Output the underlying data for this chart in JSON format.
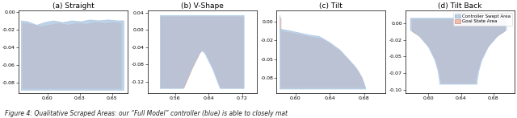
{
  "subplots": [
    {
      "title": "(a) Straight",
      "xlim": [
        0.578,
        0.662
      ],
      "ylim": [
        -0.092,
        0.002
      ],
      "controller_poly": [
        [
          0.58,
          -0.01
        ],
        [
          0.585,
          -0.011
        ],
        [
          0.592,
          -0.015
        ],
        [
          0.598,
          -0.012
        ],
        [
          0.605,
          -0.01
        ],
        [
          0.612,
          -0.012
        ],
        [
          0.619,
          -0.01
        ],
        [
          0.626,
          -0.011
        ],
        [
          0.633,
          -0.009
        ],
        [
          0.64,
          -0.01
        ],
        [
          0.647,
          -0.009
        ],
        [
          0.654,
          -0.01
        ],
        [
          0.659,
          -0.01
        ],
        [
          0.659,
          -0.089
        ],
        [
          0.58,
          -0.089
        ],
        [
          0.58,
          -0.01
        ]
      ],
      "goal_poly": [
        [
          0.581,
          -0.013
        ],
        [
          0.588,
          -0.014
        ],
        [
          0.595,
          -0.017
        ],
        [
          0.602,
          -0.015
        ],
        [
          0.609,
          -0.013
        ],
        [
          0.616,
          -0.015
        ],
        [
          0.623,
          -0.013
        ],
        [
          0.63,
          -0.014
        ],
        [
          0.637,
          -0.012
        ],
        [
          0.644,
          -0.013
        ],
        [
          0.651,
          -0.012
        ],
        [
          0.657,
          -0.013
        ],
        [
          0.657,
          -0.087
        ],
        [
          0.581,
          -0.087
        ],
        [
          0.581,
          -0.013
        ]
      ]
    },
    {
      "title": "(b) V-Shape",
      "xlim": [
        0.495,
        0.755
      ],
      "ylim": [
        -0.145,
        0.045
      ],
      "controller_poly": [
        [
          0.525,
          0.033
        ],
        [
          0.525,
          -0.135
        ],
        [
          0.58,
          -0.135
        ],
        [
          0.6,
          -0.09
        ],
        [
          0.618,
          -0.055
        ],
        [
          0.625,
          -0.048
        ],
        [
          0.632,
          -0.055
        ],
        [
          0.65,
          -0.09
        ],
        [
          0.668,
          -0.135
        ],
        [
          0.725,
          -0.135
        ],
        [
          0.725,
          0.033
        ],
        [
          0.525,
          0.033
        ]
      ],
      "goal_poly": [
        [
          0.527,
          0.03
        ],
        [
          0.527,
          -0.133
        ],
        [
          0.582,
          -0.133
        ],
        [
          0.602,
          -0.088
        ],
        [
          0.62,
          -0.053
        ],
        [
          0.627,
          -0.046
        ],
        [
          0.634,
          -0.053
        ],
        [
          0.652,
          -0.088
        ],
        [
          0.67,
          -0.133
        ],
        [
          0.723,
          -0.133
        ],
        [
          0.723,
          0.03
        ],
        [
          0.527,
          0.03
        ]
      ]
    },
    {
      "title": "(c) Tilt",
      "xlim": [
        0.578,
        0.705
      ],
      "ylim": [
        -0.095,
        0.015
      ],
      "controller_poly": [
        [
          0.582,
          0.008
        ],
        [
          0.582,
          -0.01
        ],
        [
          0.592,
          -0.012
        ],
        [
          0.604,
          -0.015
        ],
        [
          0.616,
          -0.018
        ],
        [
          0.628,
          -0.02
        ],
        [
          0.64,
          -0.028
        ],
        [
          0.652,
          -0.038
        ],
        [
          0.66,
          -0.048
        ],
        [
          0.668,
          -0.058
        ],
        [
          0.672,
          -0.064
        ],
        [
          0.676,
          -0.072
        ],
        [
          0.68,
          -0.082
        ],
        [
          0.682,
          -0.09
        ],
        [
          0.582,
          -0.09
        ],
        [
          0.582,
          0.008
        ]
      ],
      "goal_poly": [
        [
          0.583,
          0.005
        ],
        [
          0.583,
          -0.013
        ],
        [
          0.594,
          -0.015
        ],
        [
          0.606,
          -0.018
        ],
        [
          0.618,
          -0.021
        ],
        [
          0.63,
          -0.023
        ],
        [
          0.642,
          -0.031
        ],
        [
          0.654,
          -0.042
        ],
        [
          0.662,
          -0.052
        ],
        [
          0.67,
          -0.062
        ],
        [
          0.674,
          -0.068
        ],
        [
          0.678,
          -0.076
        ],
        [
          0.68,
          -0.086
        ],
        [
          0.681,
          -0.088
        ],
        [
          0.583,
          -0.088
        ],
        [
          0.583,
          0.005
        ]
      ]
    },
    {
      "title": "(d) Tilt Back",
      "xlim": [
        0.572,
        0.706
      ],
      "ylim": [
        -0.105,
        0.02
      ],
      "controller_poly": [
        [
          0.578,
          0.008
        ],
        [
          0.578,
          -0.01
        ],
        [
          0.588,
          -0.018
        ],
        [
          0.6,
          -0.035
        ],
        [
          0.608,
          -0.055
        ],
        [
          0.612,
          -0.072
        ],
        [
          0.614,
          -0.088
        ],
        [
          0.614,
          -0.092
        ],
        [
          0.66,
          -0.092
        ],
        [
          0.66,
          -0.088
        ],
        [
          0.662,
          -0.072
        ],
        [
          0.666,
          -0.055
        ],
        [
          0.674,
          -0.035
        ],
        [
          0.686,
          -0.018
        ],
        [
          0.696,
          -0.01
        ],
        [
          0.696,
          0.008
        ],
        [
          0.578,
          0.008
        ]
      ],
      "goal_poly": [
        [
          0.58,
          0.006
        ],
        [
          0.58,
          -0.012
        ],
        [
          0.59,
          -0.02
        ],
        [
          0.602,
          -0.037
        ],
        [
          0.61,
          -0.057
        ],
        [
          0.614,
          -0.074
        ],
        [
          0.616,
          -0.09
        ],
        [
          0.616,
          -0.09
        ],
        [
          0.658,
          -0.09
        ],
        [
          0.658,
          -0.086
        ],
        [
          0.66,
          -0.074
        ],
        [
          0.664,
          -0.057
        ],
        [
          0.672,
          -0.037
        ],
        [
          0.684,
          -0.02
        ],
        [
          0.694,
          -0.012
        ],
        [
          0.694,
          0.006
        ],
        [
          0.58,
          0.006
        ]
      ],
      "show_legend": true
    }
  ],
  "controller_color": "#A8C4E0",
  "goal_color": "#F0A898",
  "controller_alpha": 0.75,
  "goal_alpha": 0.75,
  "legend_labels": [
    "Controller Swept Area",
    "Goal State Area"
  ],
  "caption": "Figure 4: Qualitative Scraped Areas: our “Full Model” controller (blue) is able to closely mat",
  "fig_bg": "#ffffff"
}
